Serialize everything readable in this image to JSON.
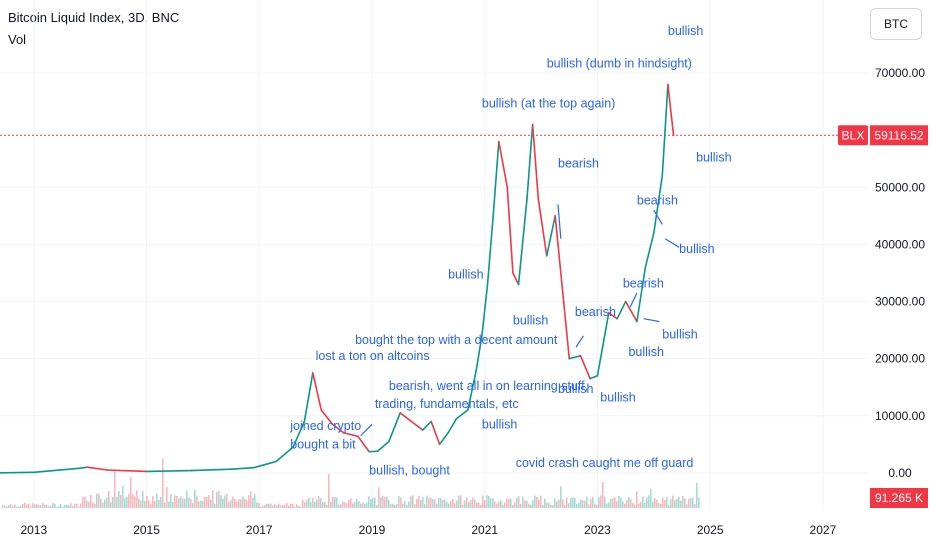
{
  "header": {
    "title": "Bitcoin Liquid Index, 3D, BNC",
    "volume_label": "Vol",
    "symbol_button": "BTC"
  },
  "price_tag": {
    "symbol": "BLX",
    "price": "59116.52",
    "value": 59116.52,
    "color": "#f23645"
  },
  "volume_tag": {
    "value": "91.265 K",
    "color": "#f23645"
  },
  "colors": {
    "up": "#089981",
    "down": "#f23645",
    "annotation": "#2962ff",
    "axis_text": "#131722"
  },
  "chart_data": {
    "type": "line",
    "x_ticks": [
      "2013",
      "2015",
      "2017",
      "2019",
      "2021",
      "2023",
      "2025",
      "2027"
    ],
    "x_range": [
      2012.4,
      2027.8
    ],
    "y_ticks": [
      0,
      10000,
      20000,
      30000,
      40000,
      50000,
      60000,
      70000
    ],
    "y_tick_labels": [
      "0.00",
      "10000.00",
      "20000.00",
      "30000.00",
      "40000.00",
      "50000.00",
      "60000.00",
      "70000.00"
    ],
    "ylim": [
      -3000,
      80000
    ],
    "series": [
      {
        "x": [
          2012.4,
          2013.0,
          2013.8,
          2013.95,
          2014.3,
          2015.0,
          2015.8,
          2016.5,
          2016.9,
          2017.3,
          2017.6,
          2017.8,
          2017.95,
          2018.1,
          2018.3,
          2018.5,
          2018.75,
          2018.95,
          2019.1,
          2019.3,
          2019.5,
          2019.7,
          2019.9,
          2020.05,
          2020.2,
          2020.35,
          2020.5,
          2020.7,
          2020.85,
          2020.95,
          2021.05,
          2021.15,
          2021.25,
          2021.4,
          2021.5,
          2021.6,
          2021.75,
          2021.85,
          2021.95,
          2022.1,
          2022.25,
          2022.4,
          2022.5,
          2022.7,
          2022.87,
          2023.0,
          2023.2,
          2023.35,
          2023.5,
          2023.7,
          2023.85,
          2024.0,
          2024.15,
          2024.25,
          2024.35
        ],
        "y": [
          5,
          100,
          800,
          1000,
          500,
          250,
          400,
          650,
          900,
          2000,
          4500,
          9000,
          17500,
          11000,
          8500,
          7000,
          6400,
          3700,
          3800,
          5500,
          10500,
          9000,
          7500,
          9000,
          5000,
          7000,
          9500,
          11000,
          18000,
          24000,
          33000,
          45000,
          58000,
          50000,
          35000,
          33000,
          48000,
          61000,
          48000,
          38000,
          45000,
          30000,
          20000,
          20500,
          16500,
          17000,
          28000,
          27000,
          30000,
          26500,
          36000,
          42000,
          52000,
          68000,
          59116
        ]
      }
    ],
    "annotations": [
      {
        "text": "joined crypto",
        "x": 2017.55,
        "y": 7500
      },
      {
        "text": "bought a bit",
        "x": 2017.55,
        "y": 4300
      },
      {
        "text": "bought the top with a decent amount",
        "x": 2018.7,
        "y": 22600
      },
      {
        "text": "lost a ton on altcoins",
        "x": 2018.0,
        "y": 19800
      },
      {
        "text": "bearish, went all in on learning stuff,",
        "x": 2019.3,
        "y": 14500
      },
      {
        "text": "trading, fundamentals, etc",
        "x": 2019.05,
        "y": 11400
      },
      {
        "text": "bullish, bought",
        "x": 2018.95,
        "y": -300
      },
      {
        "text": "bullish",
        "x": 2020.95,
        "y": 7800
      },
      {
        "text": "covid crash caught me off guard",
        "x": 2021.55,
        "y": 1000
      },
      {
        "text": "bullish",
        "x": 2020.35,
        "y": 34000
      },
      {
        "text": "bullish (at the top again)",
        "x": 2020.95,
        "y": 64000
      },
      {
        "text": "bullish",
        "x": 2021.5,
        "y": 26000
      },
      {
        "text": "bullish (dumb in hindsight)",
        "x": 2022.1,
        "y": 71000
      },
      {
        "text": "bearish",
        "x": 2022.3,
        "y": 53500
      },
      {
        "text": "bearish",
        "x": 2022.6,
        "y": 27500
      },
      {
        "text": "bullish",
        "x": 2022.3,
        "y": 14000
      },
      {
        "text": "bullish",
        "x": 2023.05,
        "y": 12500
      },
      {
        "text": "bullish",
        "x": 2023.55,
        "y": 20500
      },
      {
        "text": "bearish",
        "x": 2023.45,
        "y": 32500
      },
      {
        "text": "bullish",
        "x": 2024.15,
        "y": 23500
      },
      {
        "text": "bearish",
        "x": 2023.7,
        "y": 47000
      },
      {
        "text": "bullish",
        "x": 2024.45,
        "y": 38500
      },
      {
        "text": "bullish",
        "x": 2024.75,
        "y": 54500
      },
      {
        "text": "bullish",
        "x": 2024.25,
        "y": 76700
      }
    ]
  }
}
